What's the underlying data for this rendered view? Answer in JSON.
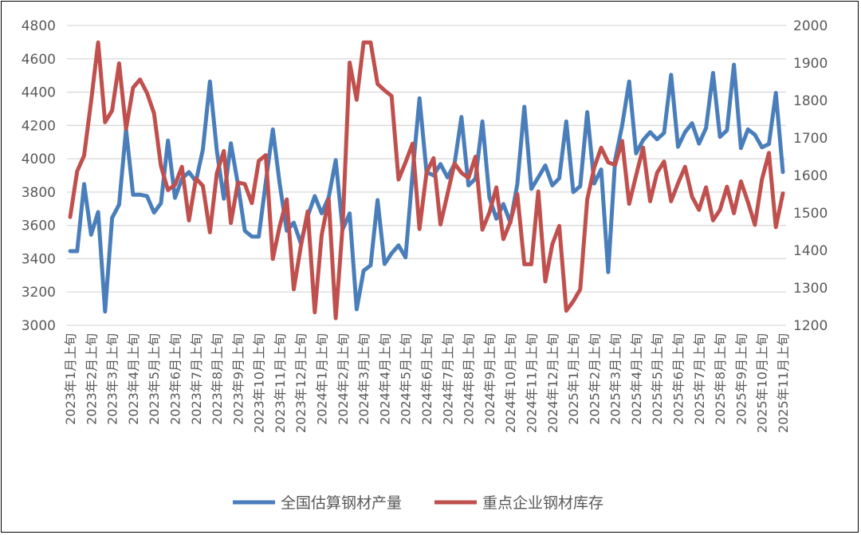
{
  "chart_data": {
    "type": "line",
    "title": "",
    "xlabel": "",
    "ylabel": "",
    "y_left": {
      "min": 3000,
      "max": 4800,
      "step": 200,
      "ticks": [
        "3000",
        "3200",
        "3400",
        "3600",
        "3800",
        "4000",
        "4200",
        "4400",
        "4600",
        "4800"
      ]
    },
    "y_right": {
      "min": 1200,
      "max": 2000,
      "step": 100,
      "ticks": [
        "1200",
        "1300",
        "1400",
        "1500",
        "1600",
        "1700",
        "1800",
        "1900",
        "2000"
      ]
    },
    "grid": true,
    "legend_position": "bottom",
    "x_tick_labels": [
      "2023年1月上旬",
      "2023年2月上旬",
      "2023年3月上旬",
      "2023年4月上旬",
      "2023年5月上旬",
      "2023年6月上旬",
      "2023年7月上旬",
      "2023年8月上旬",
      "2023年9月上旬",
      "2023年10月上旬",
      "2023年11月上旬",
      "2023年12月上旬",
      "2024年1月上旬",
      "2024年2月上旬",
      "2024年3月上旬",
      "2024年4月上旬",
      "2024年5月上旬",
      "2024年6月上旬",
      "2024年7月上旬",
      "2024年8月上旬",
      "2024年9月上旬",
      "2024年10月上旬",
      "2024年11月上旬",
      "2024年12月上旬",
      "2025年1月上旬",
      "2025年2月上旬",
      "2025年3月上旬",
      "2025年4月上旬",
      "2025年5月上旬",
      "2025年6月上旬",
      "2025年7月上旬",
      "2025年8月上旬",
      "2025年9月上旬",
      "2025年10月上旬",
      "2025年11月上旬"
    ],
    "points_per_label": 3,
    "series": [
      {
        "name": "全国估算钢材产量",
        "axis": "left",
        "color": "#4a7ebb",
        "values": [
          3445,
          3445,
          3848,
          3544,
          3680,
          3083,
          3645,
          3725,
          4176,
          3784,
          3784,
          3776,
          3677,
          3733,
          4109,
          3765,
          3880,
          3920,
          3864,
          4056,
          4464,
          4043,
          3760,
          4093,
          3848,
          3568,
          3533,
          3533,
          3860,
          4176,
          3848,
          3568,
          3616,
          3493,
          3656,
          3776,
          3672,
          3768,
          3992,
          3576,
          3672,
          3096,
          3328,
          3360,
          3752,
          3368,
          3432,
          3480,
          3408,
          3912,
          4363,
          3920,
          3900,
          3968,
          3888,
          3968,
          4251,
          3840,
          3880,
          4224,
          3768,
          3640,
          3728,
          3616,
          3848,
          4312,
          3819,
          3888,
          3960,
          3840,
          3883,
          4224,
          3800,
          3835,
          4280,
          3851,
          3936,
          3320,
          3992,
          4200,
          4464,
          4032,
          4112,
          4160,
          4117,
          4155,
          4504,
          4072,
          4160,
          4213,
          4091,
          4184,
          4515,
          4131,
          4171,
          4565,
          4064,
          4176,
          4144,
          4069,
          4088,
          4395,
          3920
        ]
      },
      {
        "name": "重点企业钢材库存",
        "axis": "right",
        "color": "#c0504d",
        "values": [
          1489,
          1611,
          1653,
          1798,
          1955,
          1742,
          1773,
          1899,
          1724,
          1834,
          1856,
          1820,
          1766,
          1625,
          1561,
          1575,
          1623,
          1480,
          1592,
          1572,
          1448,
          1607,
          1665,
          1473,
          1581,
          1577,
          1526,
          1639,
          1654,
          1377,
          1465,
          1536,
          1296,
          1409,
          1504,
          1235,
          1441,
          1536,
          1219,
          1465,
          1901,
          1802,
          1955,
          1955,
          1844,
          1827,
          1812,
          1589,
          1635,
          1685,
          1457,
          1607,
          1646,
          1469,
          1550,
          1632,
          1607,
          1593,
          1650,
          1455,
          1501,
          1568,
          1430,
          1476,
          1550,
          1363,
          1363,
          1557,
          1317,
          1416,
          1465,
          1239,
          1264,
          1296,
          1536,
          1621,
          1674,
          1635,
          1628,
          1692,
          1524,
          1600,
          1674,
          1531,
          1607,
          1637,
          1531,
          1579,
          1623,
          1543,
          1508,
          1568,
          1480,
          1508,
          1570,
          1499,
          1584,
          1529,
          1468,
          1589,
          1660,
          1462,
          1552
        ]
      }
    ]
  }
}
